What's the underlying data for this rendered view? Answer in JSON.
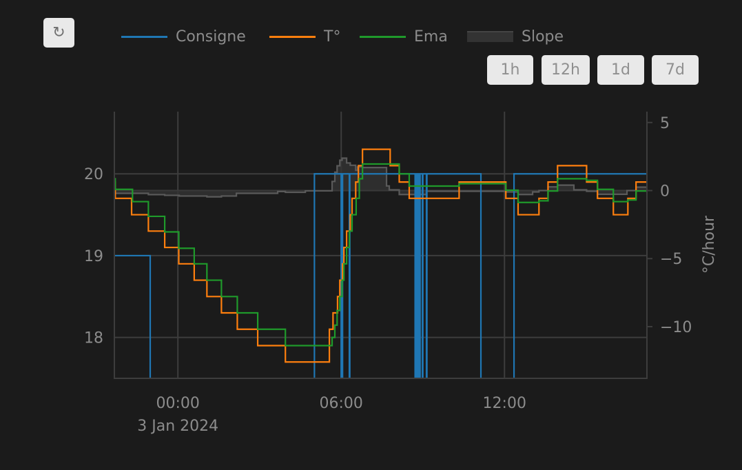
{
  "toolbar": {
    "refresh_icon": "refresh-icon",
    "refresh_glyph": "↻",
    "ranges": [
      "1h",
      "12h",
      "1d",
      "7d"
    ]
  },
  "chart_data": {
    "type": "line",
    "line_shape": "step",
    "legend_position": "top",
    "grid": true,
    "xlim": [
      "2024-01-02 21:40",
      "2024-01-03 17:14"
    ],
    "ylim": [
      17.5,
      20.76
    ],
    "y2lim": [
      -13.8,
      5.8
    ],
    "xticks": [
      {
        "at": "2024-01-03 00:00",
        "label": "00:00",
        "sublabel": "3 Jan 2024"
      },
      {
        "at": "2024-01-03 06:00",
        "label": "06:00"
      },
      {
        "at": "2024-01-03 12:00",
        "label": "12:00"
      }
    ],
    "yticks": [
      18,
      19,
      20
    ],
    "y2ticks": [
      {
        "v": 5,
        "label": "5"
      },
      {
        "v": 0,
        "label": "0"
      },
      {
        "v": -5,
        "label": "−5"
      },
      {
        "v": -10,
        "label": "−10"
      }
    ],
    "y2label": "°C/hour",
    "series": [
      {
        "name": "Consigne",
        "color": "#1f77b4",
        "axis": "y",
        "fill": false,
        "x": [
          "2024-01-02 21:40",
          "2024-01-02 22:59",
          "2024-01-03 05:01",
          "2024-01-03 06:00",
          "2024-01-03 06:03",
          "2024-01-03 06:18",
          "2024-01-03 06:19",
          "2024-01-03 08:43",
          "2024-01-03 08:44",
          "2024-01-03 08:46",
          "2024-01-03 08:47",
          "2024-01-03 08:50",
          "2024-01-03 08:51",
          "2024-01-03 08:53",
          "2024-01-03 08:54",
          "2024-01-03 08:59",
          "2024-01-03 09:00",
          "2024-01-03 09:08",
          "2024-01-03 09:09",
          "2024-01-03 11:08",
          "2024-01-03 12:21",
          "2024-01-03 17:14"
        ],
        "y": [
          19,
          17,
          20,
          17,
          20,
          17,
          20,
          17,
          20,
          17,
          20,
          17,
          20,
          17,
          20,
          17,
          20,
          17,
          20,
          17,
          20,
          20
        ]
      },
      {
        "name": "T°",
        "color": "#ff7f0e",
        "axis": "y",
        "fill": false,
        "x": [
          "2024-01-02 21:40",
          "2024-01-02 21:42",
          "2024-01-02 22:18",
          "2024-01-02 22:55",
          "2024-01-02 23:31",
          "2024-01-03 00:02",
          "2024-01-03 00:36",
          "2024-01-03 01:04",
          "2024-01-03 01:36",
          "2024-01-03 02:11",
          "2024-01-03 02:56",
          "2024-01-03 03:57",
          "2024-01-03 05:34",
          "2024-01-03 05:42",
          "2024-01-03 05:52",
          "2024-01-03 05:57",
          "2024-01-03 06:03",
          "2024-01-03 06:06",
          "2024-01-03 06:12",
          "2024-01-03 06:20",
          "2024-01-03 06:24",
          "2024-01-03 06:32",
          "2024-01-03 06:38",
          "2024-01-03 06:47",
          "2024-01-03 07:48",
          "2024-01-03 08:08",
          "2024-01-03 08:30",
          "2024-01-03 10:20",
          "2024-01-03 12:03",
          "2024-01-03 12:30",
          "2024-01-03 13:16",
          "2024-01-03 13:36",
          "2024-01-03 13:57",
          "2024-01-03 15:01",
          "2024-01-03 15:25",
          "2024-01-03 16:00",
          "2024-01-03 16:32",
          "2024-01-03 16:50",
          "2024-01-03 17:14"
        ],
        "y": [
          19.9,
          19.7,
          19.5,
          19.3,
          19.1,
          18.9,
          18.7,
          18.5,
          18.3,
          18.1,
          17.9,
          17.7,
          18.1,
          18.3,
          18.5,
          18.7,
          18.9,
          19.1,
          19.3,
          19.5,
          19.7,
          19.9,
          20.1,
          20.3,
          20.1,
          19.9,
          19.7,
          19.9,
          19.7,
          19.5,
          19.7,
          19.9,
          20.1,
          19.9,
          19.7,
          19.5,
          19.7,
          19.9,
          19.9
        ]
      },
      {
        "name": "Ema",
        "color": "#1f9a2b",
        "axis": "y",
        "fill": false,
        "x": [
          "2024-01-02 21:40",
          "2024-01-02 21:42",
          "2024-01-02 22:20",
          "2024-01-02 22:55",
          "2024-01-02 23:31",
          "2024-01-03 00:02",
          "2024-01-03 00:36",
          "2024-01-03 01:04",
          "2024-01-03 01:36",
          "2024-01-03 02:11",
          "2024-01-03 02:56",
          "2024-01-03 03:57",
          "2024-01-03 05:40",
          "2024-01-03 05:46",
          "2024-01-03 05:51",
          "2024-01-03 05:57",
          "2024-01-03 06:02",
          "2024-01-03 06:06",
          "2024-01-03 06:12",
          "2024-01-03 06:18",
          "2024-01-03 06:24",
          "2024-01-03 06:33",
          "2024-01-03 06:40",
          "2024-01-03 06:47",
          "2024-01-03 08:08",
          "2024-01-03 08:30",
          "2024-01-03 10:20",
          "2024-01-03 12:03",
          "2024-01-03 12:30",
          "2024-01-03 13:16",
          "2024-01-03 13:36",
          "2024-01-03 13:57",
          "2024-01-03 15:01",
          "2024-01-03 15:25",
          "2024-01-03 16:00",
          "2024-01-03 16:32",
          "2024-01-03 16:50",
          "2024-01-03 17:14"
        ],
        "y": [
          19.94,
          19.81,
          19.66,
          19.48,
          19.29,
          19.09,
          18.9,
          18.7,
          18.5,
          18.3,
          18.1,
          17.9,
          18.0,
          18.15,
          18.33,
          18.5,
          18.7,
          18.9,
          19.1,
          19.3,
          19.5,
          19.7,
          19.94,
          20.12,
          20.0,
          19.85,
          19.88,
          19.8,
          19.65,
          19.67,
          19.79,
          19.94,
          19.92,
          19.81,
          19.66,
          19.68,
          19.79,
          19.79
        ]
      },
      {
        "name": "Slope",
        "color": "#5a5a5a",
        "fill_color": "#333333",
        "axis": "y2",
        "fill": true,
        "x": [
          "2024-01-02 21:40",
          "2024-01-02 22:55",
          "2024-01-02 23:31",
          "2024-01-03 00:03",
          "2024-01-03 01:04",
          "2024-01-03 01:36",
          "2024-01-03 02:09",
          "2024-01-03 03:40",
          "2024-01-03 03:57",
          "2024-01-03 04:41",
          "2024-01-03 05:40",
          "2024-01-03 05:46",
          "2024-01-03 05:51",
          "2024-01-03 05:57",
          "2024-01-03 06:02",
          "2024-01-03 06:12",
          "2024-01-03 06:20",
          "2024-01-03 06:32",
          "2024-01-03 06:36",
          "2024-01-03 06:47",
          "2024-01-03 07:40",
          "2024-01-03 07:46",
          "2024-01-03 08:08",
          "2024-01-03 09:08",
          "2024-01-03 12:03",
          "2024-01-03 12:30",
          "2024-01-03 13:02",
          "2024-01-03 13:16",
          "2024-01-03 13:36",
          "2024-01-03 13:57",
          "2024-01-03 14:33",
          "2024-01-03 15:01",
          "2024-01-03 15:25",
          "2024-01-03 16:30",
          "2024-01-03 16:50",
          "2024-01-03 17:14"
        ],
        "y": [
          -0.2,
          -0.3,
          -0.35,
          -0.4,
          -0.46,
          -0.4,
          -0.2,
          -0.07,
          -0.13,
          -0.02,
          0.67,
          1.35,
          1.82,
          2.23,
          2.38,
          2.03,
          1.86,
          1.49,
          1.74,
          1.69,
          0.34,
          0.05,
          -0.29,
          -0.05,
          -0.1,
          -0.29,
          -0.1,
          0,
          0.27,
          0.4,
          0.05,
          -0.05,
          -0.27,
          0,
          0.25,
          0.25
        ]
      }
    ]
  }
}
